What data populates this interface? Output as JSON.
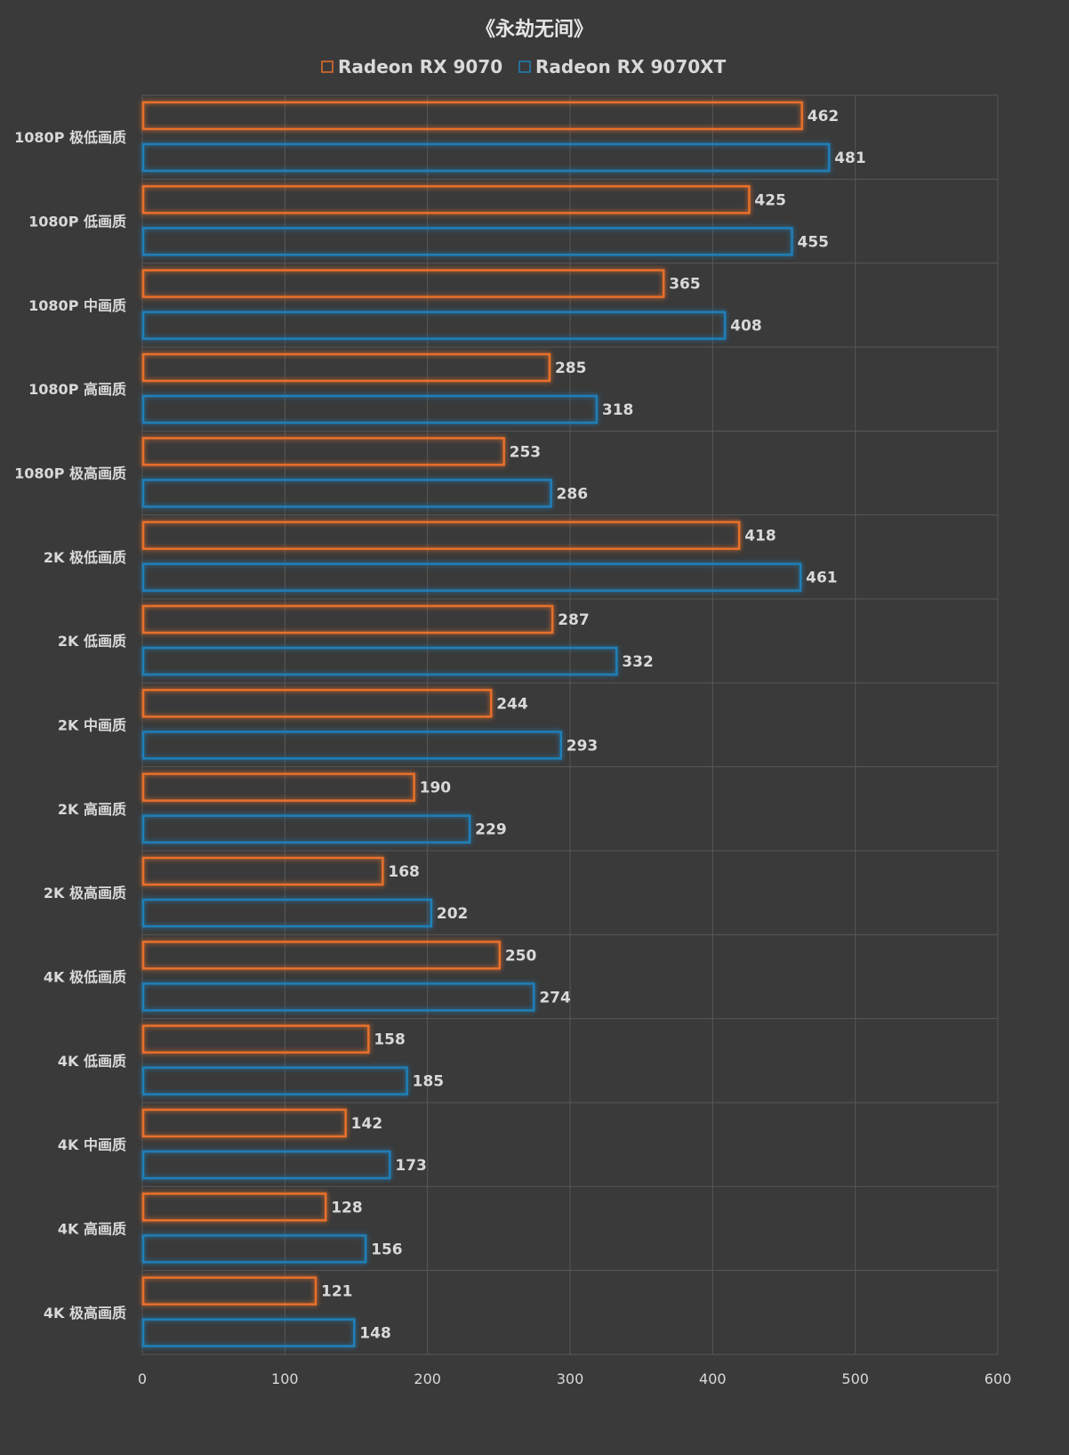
{
  "chart_data": {
    "type": "bar",
    "orientation": "horizontal",
    "title": "《永劫无间》",
    "categories": [
      "1080P 极低画质",
      "1080P 低画质",
      "1080P 中画质",
      "1080P 高画质",
      "1080P 极高画质",
      "2K 极低画质",
      "2K 低画质",
      "2K 中画质",
      "2K 高画质",
      "2K 极高画质",
      "4K 极低画质",
      "4K 低画质",
      "4K 中画质",
      "4K 高画质",
      "4K 极高画质"
    ],
    "series": [
      {
        "name": "Radeon RX 9070",
        "color": "#e8702a",
        "values": [
          462,
          425,
          365,
          285,
          253,
          418,
          287,
          244,
          190,
          168,
          250,
          158,
          142,
          128,
          121
        ]
      },
      {
        "name": "Radeon RX 9070XT",
        "color": "#1f7fb8",
        "values": [
          481,
          455,
          408,
          318,
          286,
          461,
          332,
          293,
          229,
          202,
          274,
          185,
          173,
          156,
          148
        ]
      }
    ],
    "xlim": [
      0,
      600
    ],
    "xticks": [
      0,
      100,
      200,
      300,
      400,
      500,
      600
    ],
    "grid": true,
    "legend_position": "top"
  }
}
